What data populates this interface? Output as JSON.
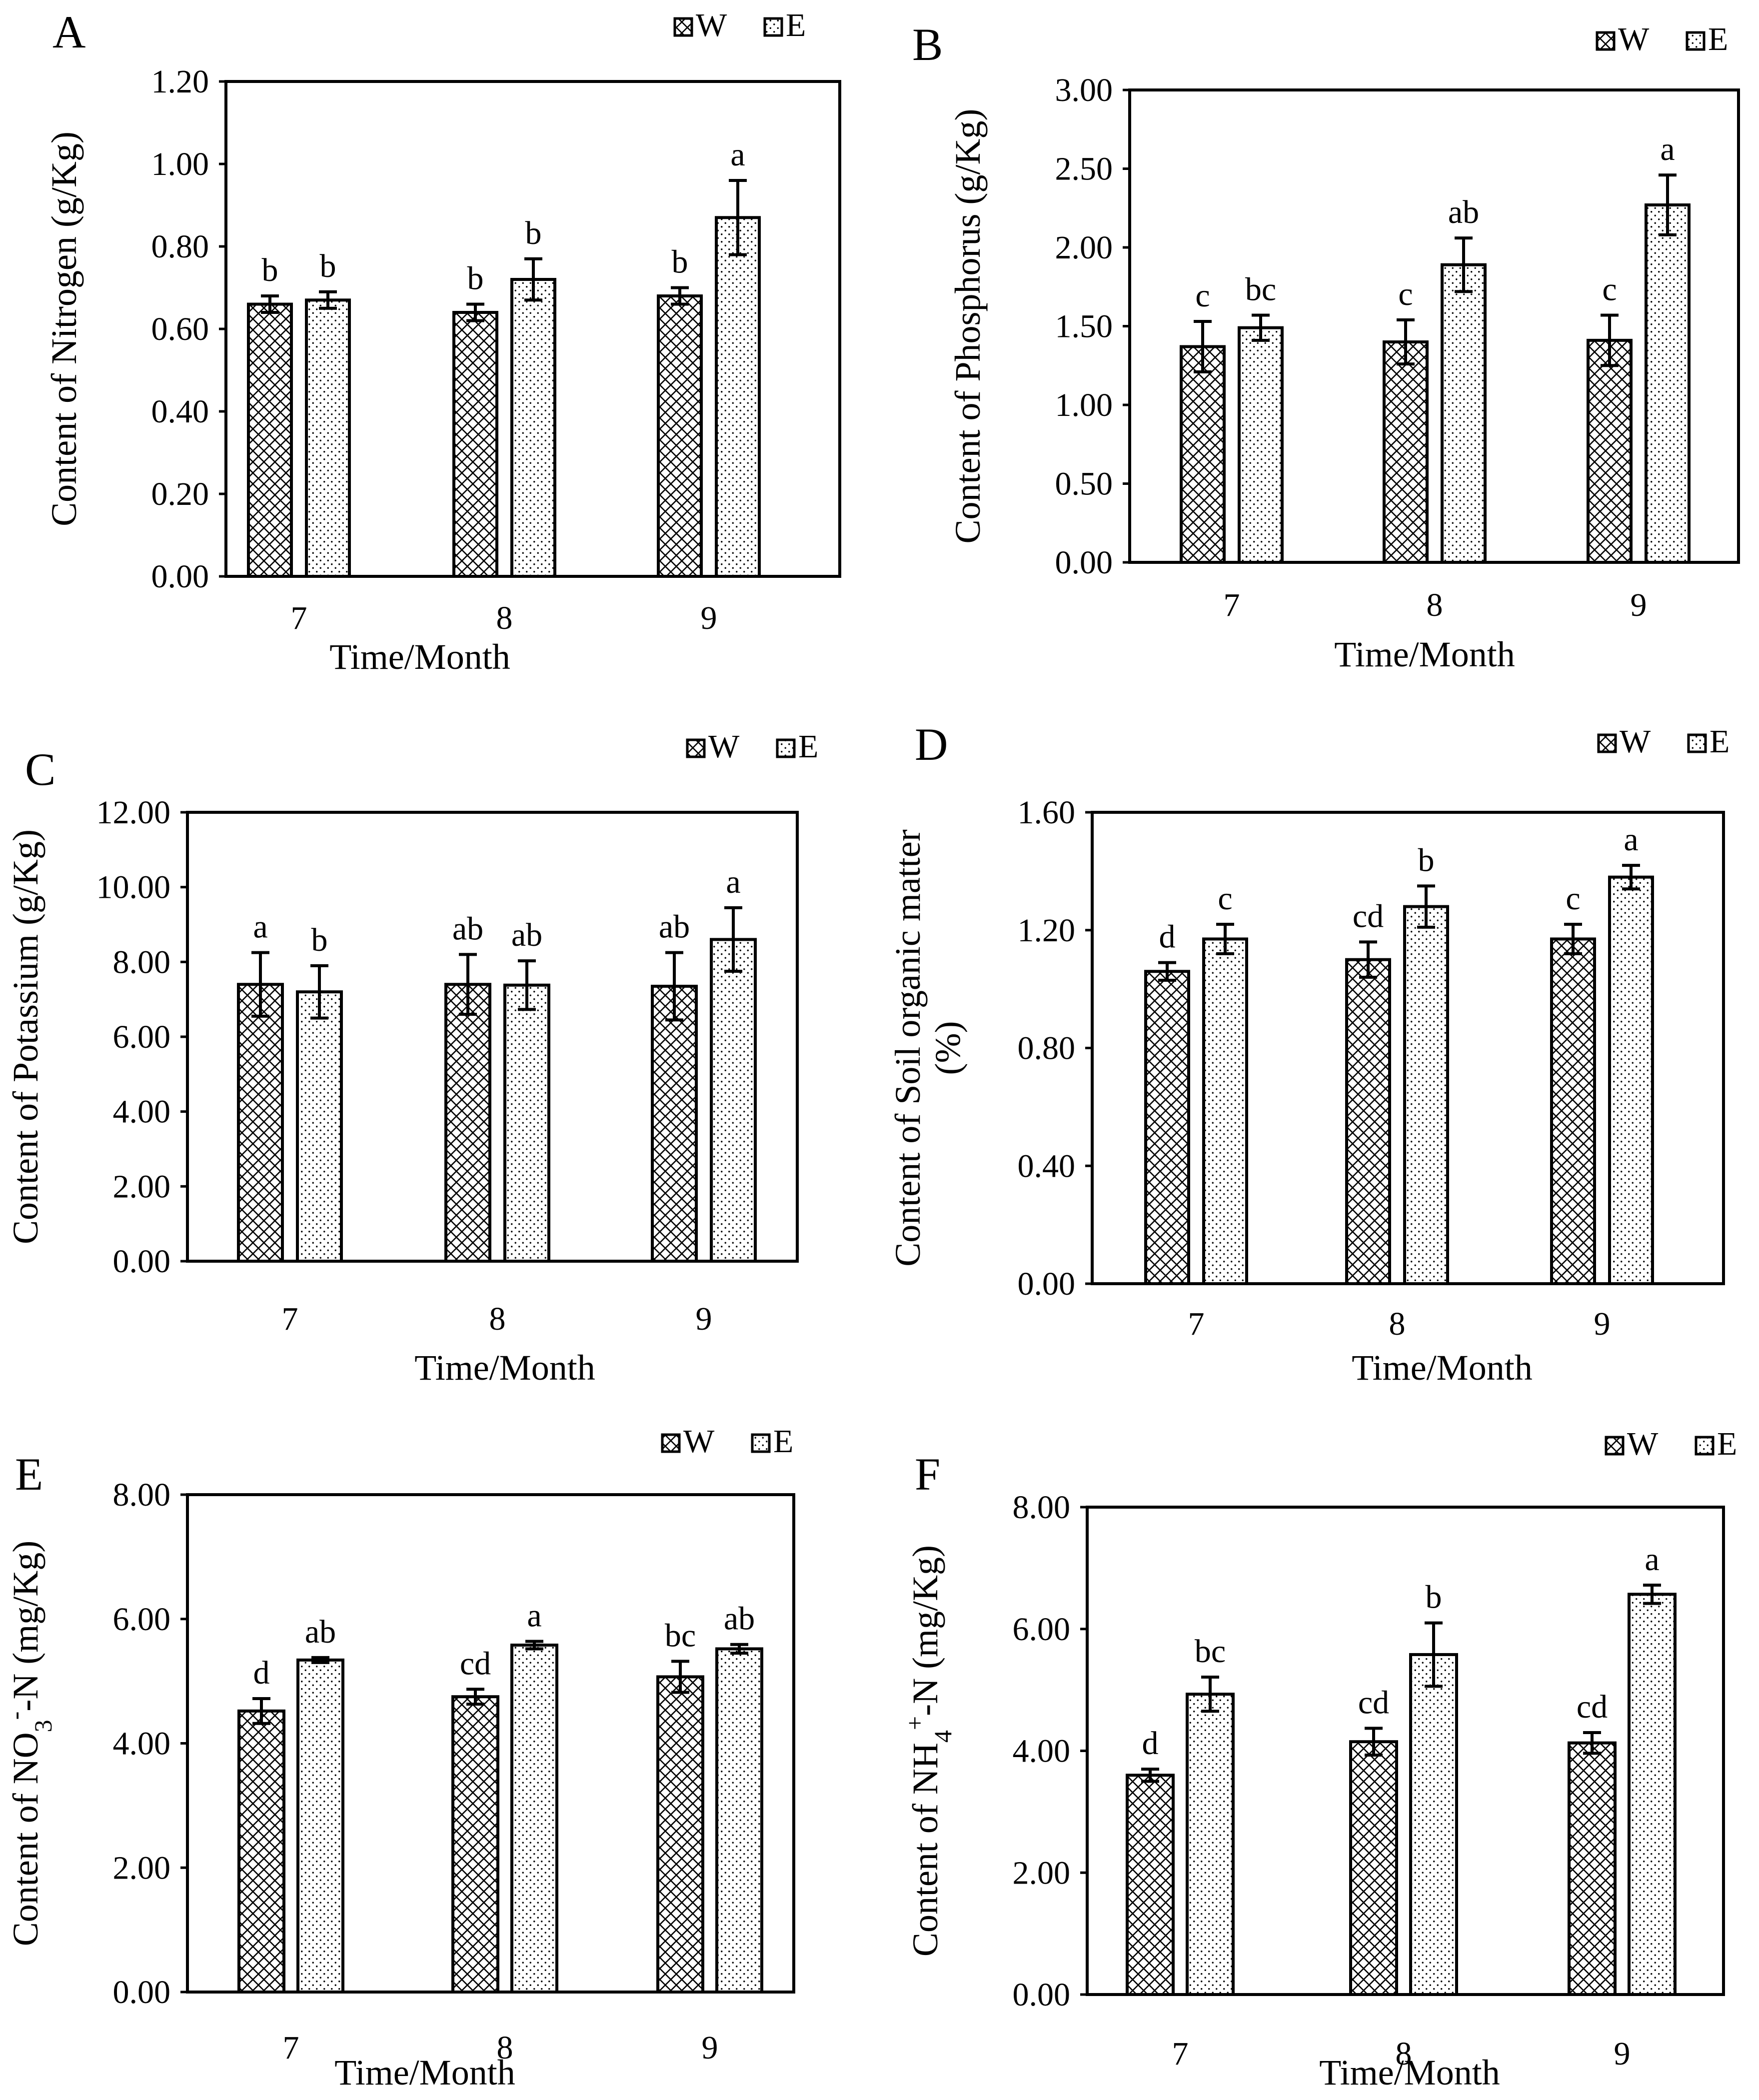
{
  "chart_data": [
    {
      "id": "A",
      "type": "bar",
      "panel_label": "A",
      "categories": [
        "7",
        "8",
        "9"
      ],
      "series": [
        {
          "name": "W",
          "values": [
            0.66,
            0.64,
            0.68
          ],
          "errors": [
            0.02,
            0.02,
            0.02
          ],
          "letters": [
            "b",
            "b",
            "b"
          ]
        },
        {
          "name": "E",
          "values": [
            0.67,
            0.72,
            0.87
          ],
          "errors": [
            0.02,
            0.05,
            0.09
          ],
          "letters": [
            "b",
            "b",
            "a"
          ]
        }
      ],
      "xlabel": "Time/Month",
      "ylabel": "Content of  Nitrogen (g/Kg)",
      "ylim": [
        0,
        1.2
      ],
      "ytick_step": 0.2,
      "ytick_decimals": 2,
      "legend": [
        "W",
        "E"
      ],
      "legend_position": "top-right"
    },
    {
      "id": "B",
      "type": "bar",
      "panel_label": "B",
      "categories": [
        "7",
        "8",
        "9"
      ],
      "series": [
        {
          "name": "W",
          "values": [
            1.37,
            1.4,
            1.41
          ],
          "errors": [
            0.16,
            0.14,
            0.16
          ],
          "letters": [
            "c",
            "c",
            "c"
          ]
        },
        {
          "name": "E",
          "values": [
            1.49,
            1.89,
            2.27
          ],
          "errors": [
            0.08,
            0.17,
            0.19
          ],
          "letters": [
            "bc",
            "ab",
            "a"
          ]
        }
      ],
      "xlabel": "Time/Month",
      "ylabel": "Content of  Phosphorus (g/Kg)",
      "ylim": [
        0,
        3.0
      ],
      "ytick_step": 0.5,
      "ytick_decimals": 2,
      "legend": [
        "W",
        "E"
      ],
      "legend_position": "top-right"
    },
    {
      "id": "C",
      "type": "bar",
      "panel_label": "C",
      "categories": [
        "7",
        "8",
        "9"
      ],
      "series": [
        {
          "name": "W",
          "values": [
            7.4,
            7.4,
            7.35
          ],
          "errors": [
            0.85,
            0.8,
            0.9
          ],
          "letters": [
            "a",
            "ab",
            "ab"
          ]
        },
        {
          "name": "E",
          "values": [
            7.2,
            7.38,
            8.6
          ],
          "errors": [
            0.7,
            0.65,
            0.85
          ],
          "letters": [
            "b",
            "ab",
            "a"
          ]
        }
      ],
      "xlabel": "Time/Month",
      "ylabel": "Content of  Potassium (g/Kg)",
      "ylim": [
        0,
        12
      ],
      "ytick_step": 2,
      "ytick_decimals": 2,
      "legend": [
        "W",
        "E"
      ],
      "legend_position": "top-right"
    },
    {
      "id": "D",
      "type": "bar",
      "panel_label": "D",
      "categories": [
        "7",
        "8",
        "9"
      ],
      "series": [
        {
          "name": "W",
          "values": [
            1.06,
            1.1,
            1.17
          ],
          "errors": [
            0.03,
            0.06,
            0.05
          ],
          "letters": [
            "d",
            "cd",
            "c"
          ]
        },
        {
          "name": "E",
          "values": [
            1.17,
            1.28,
            1.38
          ],
          "errors": [
            0.05,
            0.07,
            0.04
          ],
          "letters": [
            "c",
            "b",
            "a"
          ]
        }
      ],
      "xlabel": "Time/Month",
      "ylabel": [
        "Content of Soil organic matter",
        "(%)"
      ],
      "ylim": [
        0,
        1.6
      ],
      "ytick_step": 0.4,
      "ytick_decimals": 2,
      "legend": [
        "W",
        "E"
      ],
      "legend_position": "top-right"
    },
    {
      "id": "E",
      "type": "bar",
      "panel_label": "E",
      "categories": [
        "7",
        "8",
        "9"
      ],
      "series": [
        {
          "name": "W",
          "values": [
            4.52,
            4.75,
            5.07
          ],
          "errors": [
            0.2,
            0.12,
            0.25
          ],
          "letters": [
            "d",
            "cd",
            "bc"
          ]
        },
        {
          "name": "E",
          "values": [
            5.34,
            5.58,
            5.52
          ],
          "errors": [
            0.04,
            0.06,
            0.07
          ],
          "letters": [
            "ab",
            "a",
            "ab"
          ]
        }
      ],
      "xlabel": "Time/Month",
      "ylabel": {
        "prefix": "Content of NO",
        "sub": "3",
        "sup": "-",
        "suffix": "-N (mg/Kg)"
      },
      "ylim": [
        0,
        8
      ],
      "ytick_step": 2,
      "ytick_decimals": 2,
      "legend": [
        "W",
        "E"
      ],
      "legend_position": "top-right"
    },
    {
      "id": "F",
      "type": "bar",
      "panel_label": "F",
      "categories": [
        "7",
        "8",
        "9"
      ],
      "series": [
        {
          "name": "W",
          "values": [
            3.6,
            4.15,
            4.13
          ],
          "errors": [
            0.1,
            0.22,
            0.17
          ],
          "letters": [
            "d",
            "cd",
            "cd"
          ]
        },
        {
          "name": "E",
          "values": [
            4.93,
            5.58,
            6.57
          ],
          "errors": [
            0.28,
            0.52,
            0.15
          ],
          "letters": [
            "bc",
            "b",
            "a"
          ]
        }
      ],
      "xlabel": "Time/Month",
      "ylabel": {
        "prefix": "Content of NH",
        "sub": "4",
        "sup": "+",
        "suffix": "-N (mg/Kg)"
      },
      "ylim": [
        0,
        8
      ],
      "ytick_step": 2,
      "ytick_decimals": 2,
      "legend": [
        "W",
        "E"
      ],
      "legend_position": "top-right"
    }
  ]
}
